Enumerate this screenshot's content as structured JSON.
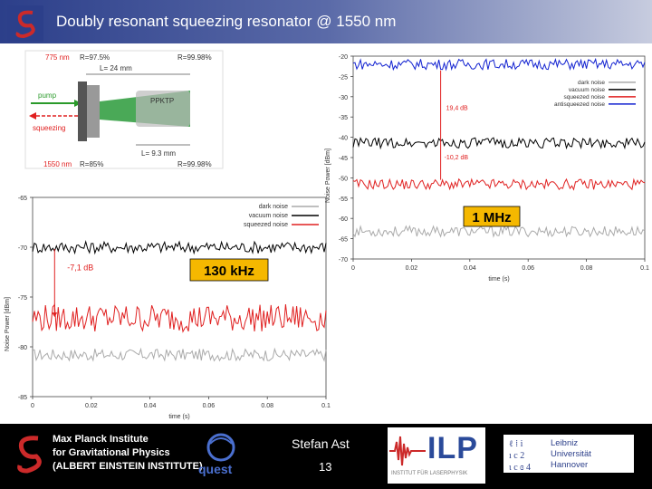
{
  "header": {
    "title": "Doubly resonant squeezing resonator @ 1550 nm"
  },
  "setup": {
    "wl_top": "775 nm",
    "r_left_top": "R=97.5%",
    "r_right_top": "R=99.98%",
    "length_top": "L= 24 mm",
    "pump": "pump",
    "squeezing": "squeezing",
    "crystal": "PPKTP",
    "length_bottom": "L= 9.3 mm",
    "wl_bottom": "1550 nm",
    "r_left_bottom": "R=85%",
    "r_right_bottom": "R=99.98%"
  },
  "chart_data": [
    {
      "type": "line",
      "title": "",
      "xlabel": "time (s)",
      "ylabel": "Noise Power [dBm]",
      "xlim": [
        0,
        0.1
      ],
      "ylim": [
        -85,
        -65
      ],
      "xticks": [
        "0",
        "0.02",
        "0.04",
        "0.06",
        "0.08",
        "0.1"
      ],
      "yticks": [
        "-65",
        "-70",
        "-75",
        "-80",
        "-85"
      ],
      "legend": [
        "dark noise",
        "vacuum noise",
        "squeezed noise"
      ],
      "legend_position": "top-right",
      "series": [
        {
          "name": "dark noise",
          "mean": -80.8,
          "color": "#aaaaaa"
        },
        {
          "name": "vacuum noise",
          "mean": -70.0,
          "color": "#000000"
        },
        {
          "name": "squeezed noise",
          "mean": -77.1,
          "color": "#e02020"
        }
      ],
      "annotation": "-7,1 dB",
      "label_box": "130 kHz"
    },
    {
      "type": "line",
      "title": "",
      "xlabel": "time (s)",
      "ylabel": "Noise Power [dBm]",
      "xlim": [
        0,
        0.1
      ],
      "ylim": [
        -70,
        -20
      ],
      "xticks": [
        "0",
        "0.02",
        "0.04",
        "0.06",
        "0.08",
        "0.1"
      ],
      "yticks": [
        "-20",
        "-25",
        "-30",
        "-35",
        "-40",
        "-45",
        "-50",
        "-55",
        "-60",
        "-65",
        "-70"
      ],
      "legend": [
        "dark noise",
        "vacuum noise",
        "squeezed noise",
        "antisqueezed noise"
      ],
      "legend_position": "top-right",
      "series": [
        {
          "name": "dark noise",
          "mean": -63.2,
          "color": "#aaaaaa"
        },
        {
          "name": "vacuum noise",
          "mean": -41.4,
          "color": "#000000"
        },
        {
          "name": "squeezed noise",
          "mean": -51.6,
          "color": "#e02020"
        },
        {
          "name": "antisqueezed noise",
          "mean": -22.0,
          "color": "#1020d0"
        }
      ],
      "annotation_up": "19,4 dB",
      "annotation_down": "-10,2 dB",
      "label_box": "1 MHz"
    }
  ],
  "footer": {
    "mpi_line1": "Max Planck Institute",
    "mpi_line2": "for Gravitational Physics",
    "mpi_line3": "(ALBERT EINSTEIN INSTITUTE)",
    "presenter": "Stefan Ast",
    "page": "13",
    "quest": "quest",
    "ilp": "ILP",
    "ilp_sub": "INSTITUT FÜR LASERPHYSIK",
    "luh_line1": "Leibniz",
    "luh_line2": "Universität",
    "luh_line3": "Hannover"
  },
  "colors": {
    "header": "#2c3f8a",
    "accent": "#e02020",
    "label_box": "#f5b800"
  }
}
